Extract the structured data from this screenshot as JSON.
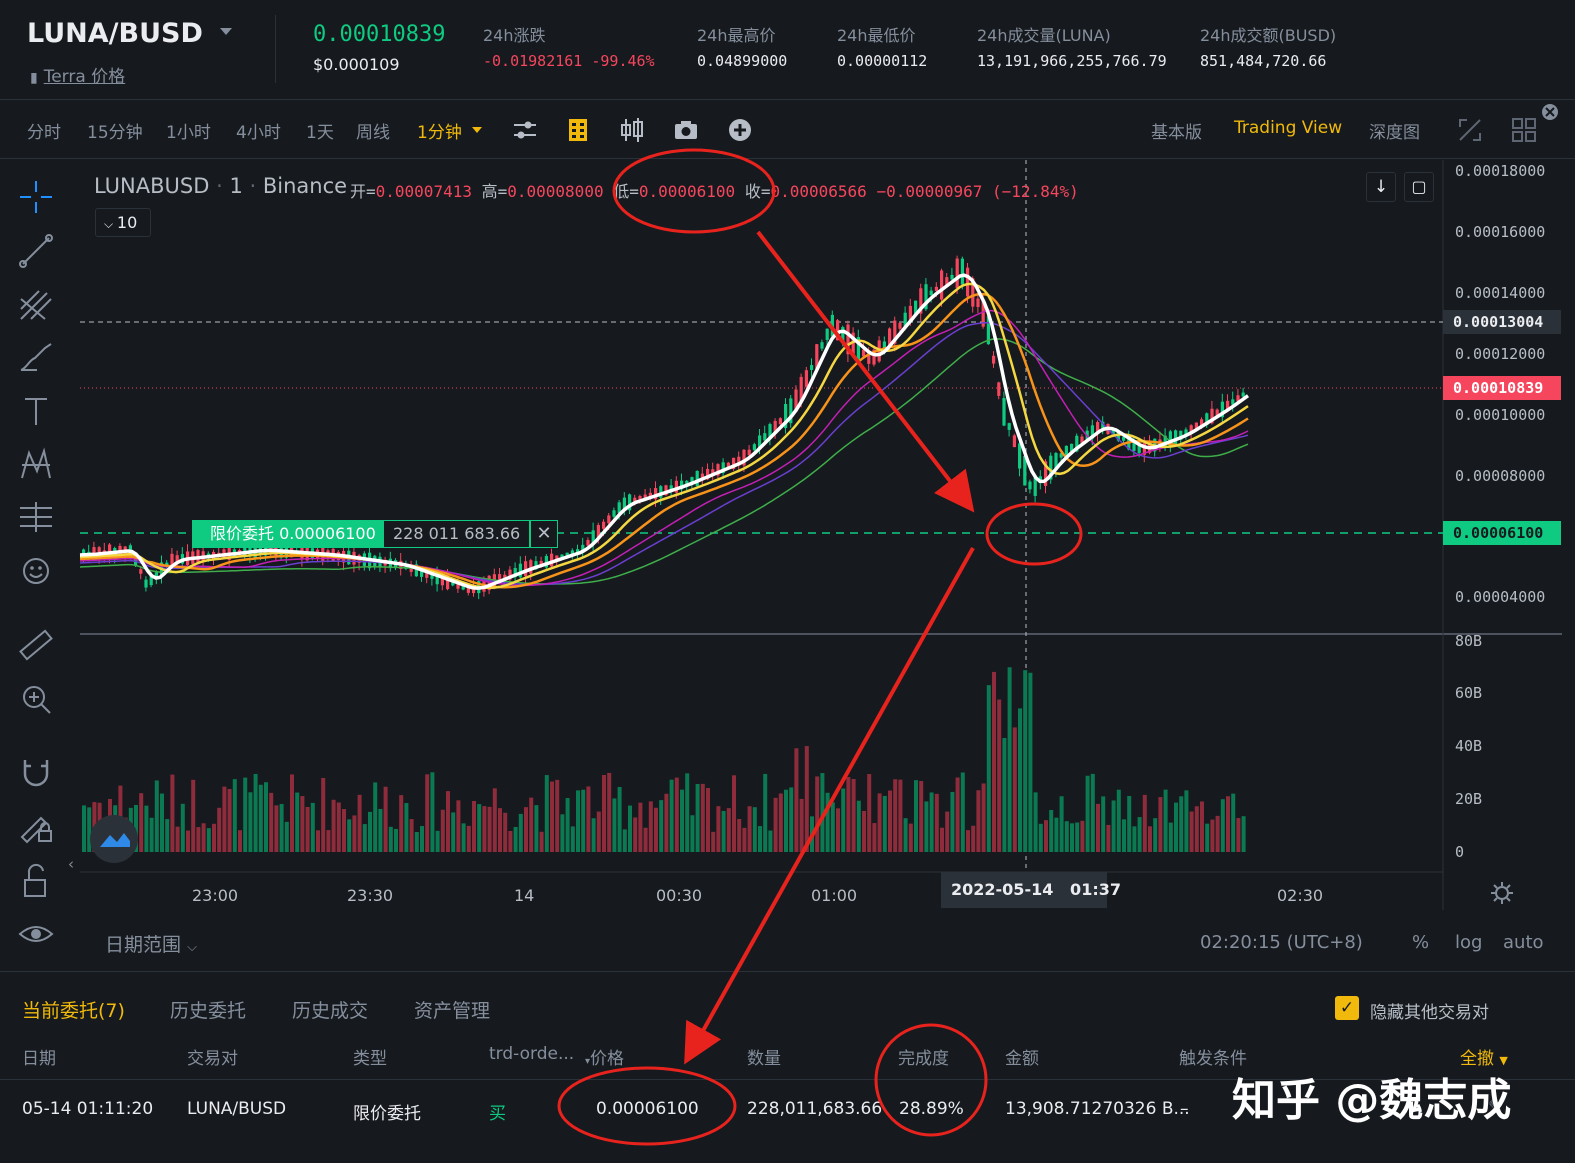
{
  "header": {
    "symbol": "LUNA/BUSD",
    "sub_icon": "document-icon",
    "sub_label": "Terra 价格",
    "last_price": "0.00010839",
    "last_price_usd": "$0.000109",
    "stats": [
      {
        "label": "24h涨跌",
        "value": "-0.01982161 -99.46%",
        "color": "#f6465d"
      },
      {
        "label": "24h最高价",
        "value": "0.04899000",
        "color": "#eaecef"
      },
      {
        "label": "24h最低价",
        "value": "0.00000112",
        "color": "#eaecef"
      },
      {
        "label": "24h成交量(LUNA)",
        "value": "13,191,966,255,766.79",
        "color": "#eaecef"
      },
      {
        "label": "24h成交额(BUSD)",
        "value": "851,484,720.66",
        "color": "#eaecef"
      }
    ]
  },
  "toolbar": {
    "intervals": [
      "分时",
      "15分钟",
      "1小时",
      "4小时",
      "1天",
      "周线"
    ],
    "active_interval": "1分钟",
    "right": [
      "基本版",
      "Trading View",
      "深度图"
    ],
    "right_active": "Trading View"
  },
  "chart": {
    "legend_symbol": "LUNABUSD",
    "legend_interval": "1",
    "legend_exchange": "Binance",
    "ohlc_open_label": "开=",
    "ohlc_open": "0.00007413",
    "ohlc_high_label": "高=",
    "ohlc_high": "0.00008000",
    "ohlc_low_label": "低=",
    "ohlc_low": "0.00006100",
    "ohlc_close_label": "收=",
    "ohlc_close": "0.00006566",
    "ohlc_change": "−0.00000967 (−12.84%)",
    "ma_toggle": "10",
    "price_axis": [
      "0.00018000",
      "0.00016000",
      "0.00014000",
      "0.00012000",
      "0.00010000",
      "0.00008000",
      "0.00004000"
    ],
    "crosshair_price": "0.00013004",
    "last_price_tag": "0.00010839",
    "order_line_price": "0.00006100",
    "volume_axis": [
      "80B",
      "60B",
      "40B",
      "20B",
      "0"
    ],
    "time_axis": [
      "23:00",
      "23:30",
      "14",
      "00:30",
      "01:00",
      "02:30"
    ],
    "crosshair_time": "2022-05-14   01:37",
    "order_label": "限价委托 0.00006100",
    "order_qty": "228 011 683.66",
    "date_range": "日期范围",
    "clock": "02:20:15 (UTC+8)",
    "scale_pct": "%",
    "scale_log": "log",
    "scale_auto": "auto",
    "colors": {
      "up": "#0ecb81",
      "down": "#f6465d",
      "accent": "#f0b90b"
    }
  },
  "orders": {
    "tabs": [
      "当前委托(7)",
      "历史委托",
      "历史成交",
      "资产管理"
    ],
    "hide_other": "隐藏其他交易对",
    "cancel_all": "全撤",
    "columns": [
      "日期",
      "交易对",
      "类型",
      "trd-orde...",
      "价格",
      "数量",
      "完成度",
      "金额",
      "触发条件"
    ],
    "row": {
      "date": "05-14 01:11:20",
      "pair": "LUNA/BUSD",
      "type": "限价委托",
      "side": "买",
      "price": "0.00006100",
      "qty": "228,011,683.66",
      "filled": "28.89%",
      "amount": "13,908.71270326 B...",
      "trigger": "–"
    }
  },
  "watermark": "知乎 @魏志成"
}
